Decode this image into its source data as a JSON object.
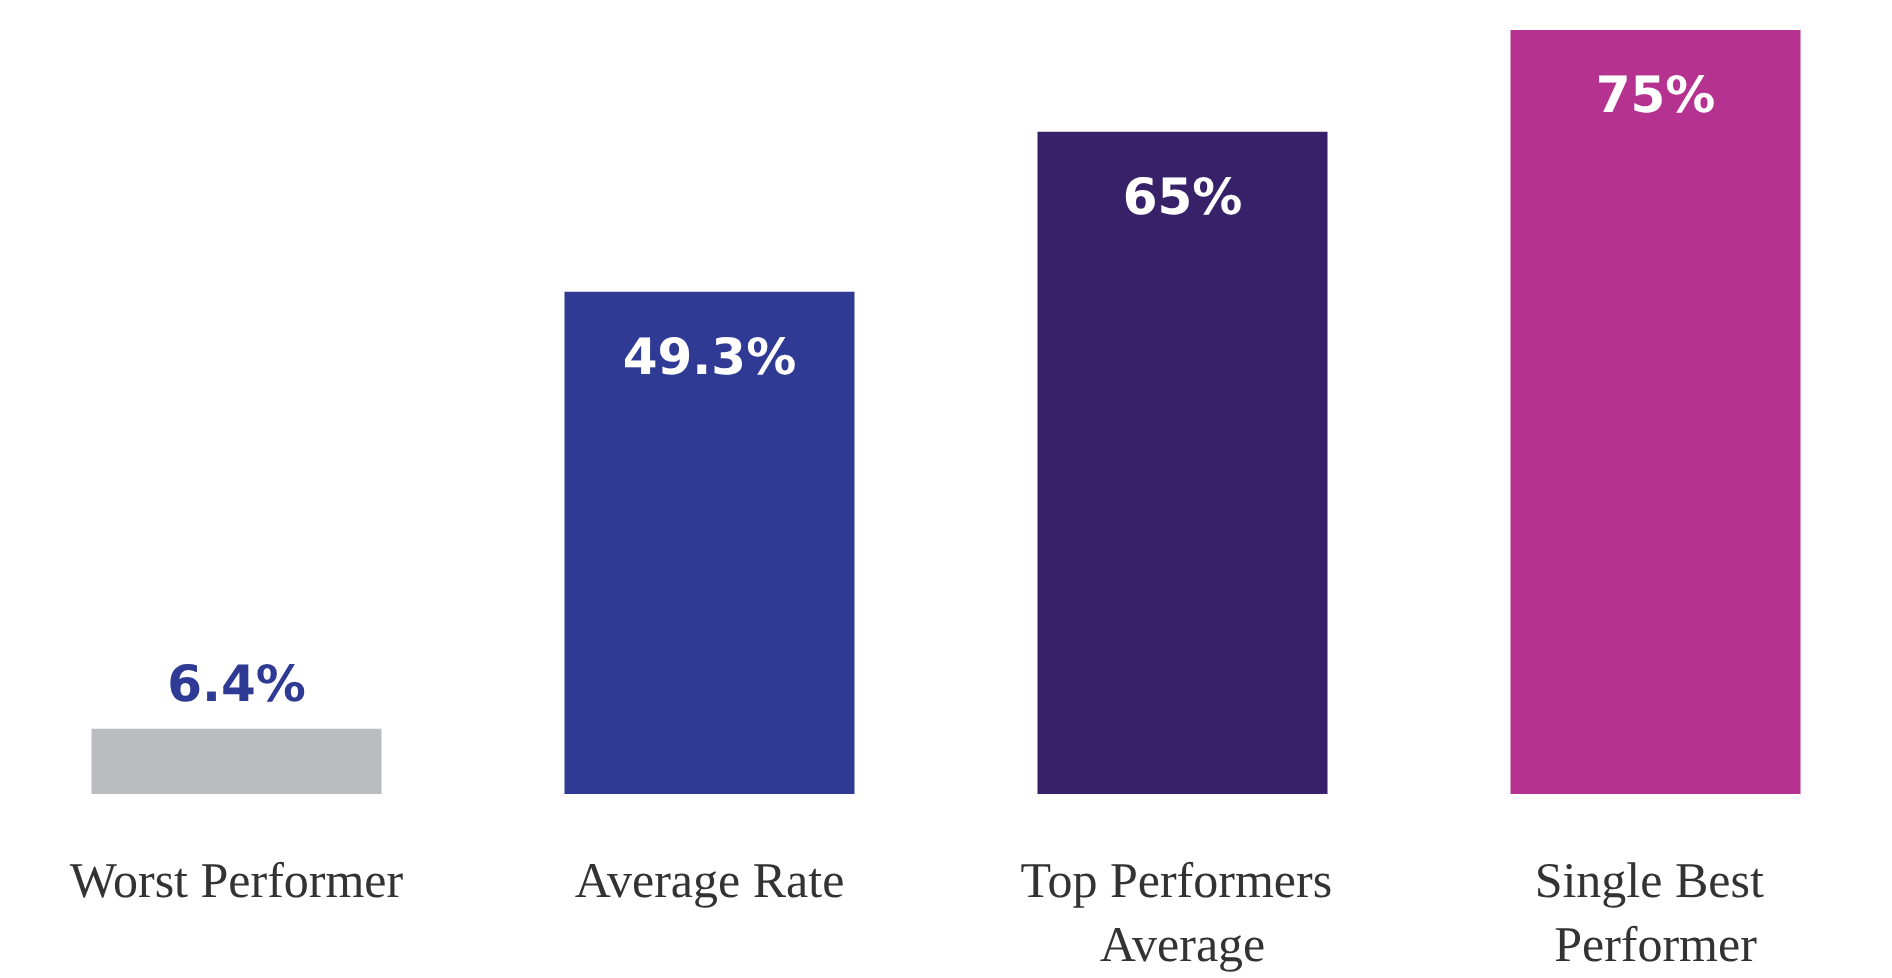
{
  "chart_data": {
    "type": "bar",
    "categories": [
      "Worst Performer",
      "Average Rate",
      "Top Performers Average",
      "Single Best Performer"
    ],
    "values": [
      6.4,
      49.3,
      65,
      75
    ],
    "colors": [
      "#bbbcbf",
      "#2e3a94",
      "#37226a",
      "#b53290"
    ],
    "value_labels": [
      "6.4%",
      "49.3%",
      "65%",
      "75%"
    ]
  }
}
